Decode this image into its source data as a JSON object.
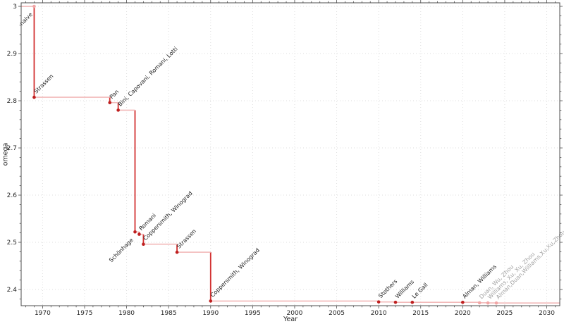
{
  "chart_data": {
    "type": "line",
    "subtype": "step-post",
    "title": "",
    "xlabel": "Year",
    "ylabel": "omega",
    "xlim": [
      1967.45,
      2031.55
    ],
    "ylim": [
      2.3657,
      3.0075
    ],
    "x_major_ticks": [
      1970,
      1975,
      1980,
      1985,
      1990,
      1995,
      2000,
      2005,
      2010,
      2015,
      2020,
      2025,
      2030
    ],
    "x_minor_step": 1,
    "y_major_ticks": [
      {
        "value": 3.0,
        "label": "3"
      },
      {
        "value": 2.9,
        "label": "2.9"
      },
      {
        "value": 2.8,
        "label": "2.8"
      },
      {
        "value": 2.7,
        "label": "2.7"
      },
      {
        "value": 2.6,
        "label": "2.6"
      },
      {
        "value": 2.5,
        "label": "2.5"
      },
      {
        "value": 2.4,
        "label": "2.4"
      }
    ],
    "y_minor_step": 0.02,
    "grid": "dotted-major-both",
    "legend": "none",
    "points": [
      {
        "year": 1969,
        "omega": 3.0,
        "label": "naive",
        "label_below": true,
        "label_gray": false,
        "marker_faded": true
      },
      {
        "year": 1969,
        "omega": 2.8074,
        "label": "Strassen",
        "label_below": false,
        "label_gray": false,
        "marker_faded": false
      },
      {
        "year": 1978,
        "omega": 2.796,
        "label": "Pan",
        "label_below": false,
        "label_gray": false,
        "marker_faded": false
      },
      {
        "year": 1979,
        "omega": 2.78,
        "label": "Bini, Capovani, Romani, Lotti",
        "label_below": false,
        "label_gray": false,
        "marker_faded": false
      },
      {
        "year": 1981,
        "omega": 2.522,
        "label": "Schönhage",
        "label_below": true,
        "label_gray": false,
        "marker_faded": false
      },
      {
        "year": 1981.5,
        "omega": 2.517,
        "label": "Romani",
        "label_below": false,
        "label_gray": false,
        "marker_faded": false
      },
      {
        "year": 1982,
        "omega": 2.496,
        "label": "Coppersmith, Winograd",
        "label_below": false,
        "label_gray": false,
        "marker_faded": false
      },
      {
        "year": 1986,
        "omega": 2.479,
        "label": "Strassen",
        "label_below": false,
        "label_gray": false,
        "marker_faded": false
      },
      {
        "year": 1990,
        "omega": 2.3755,
        "label": "Coppersmith, Winograd",
        "label_below": false,
        "label_gray": false,
        "marker_faded": false
      },
      {
        "year": 2010,
        "omega": 2.3737,
        "label": "Stothers",
        "label_below": false,
        "label_gray": false,
        "marker_faded": false
      },
      {
        "year": 2012,
        "omega": 2.3729,
        "label": "Williams",
        "label_below": false,
        "label_gray": false,
        "marker_faded": false
      },
      {
        "year": 2014,
        "omega": 2.3728639,
        "label": "Le Gall",
        "label_below": false,
        "label_gray": false,
        "marker_faded": false
      },
      {
        "year": 2020,
        "omega": 2.3728596,
        "label": "Alman, Williams",
        "label_below": false,
        "label_gray": false,
        "marker_faded": false
      },
      {
        "year": 2022,
        "omega": 2.371866,
        "label": "Duan, Wu, Zhou",
        "label_below": false,
        "label_gray": true,
        "marker_faded": true
      },
      {
        "year": 2023,
        "omega": 2.371552,
        "label": "Williams, Xu, Xu, Zhou",
        "label_below": false,
        "label_gray": true,
        "marker_faded": true
      },
      {
        "year": 2024,
        "omega": 2.371339,
        "label": "Alman,Duan,Williams,Xu,Xu,Zhou",
        "label_below": false,
        "label_gray": true,
        "marker_faded": true
      }
    ],
    "colors": {
      "line_vertical": "#d23030",
      "line_horizontal": "#f2b9b9",
      "marker": "#bf2020",
      "marker_faded": "#f1a6a6",
      "label": "#1a1a1a",
      "label_gray": "#a3a3a3",
      "grid": "#dedede",
      "spine": "#4d4d4d",
      "tick_label": "#262626"
    }
  }
}
